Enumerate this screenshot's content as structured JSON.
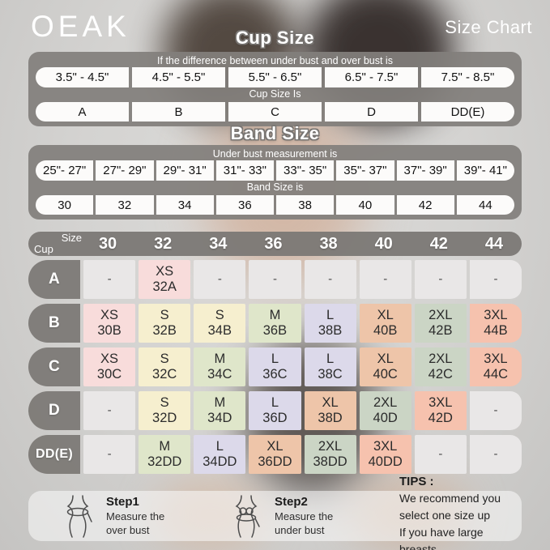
{
  "brand": "OEAK",
  "page_title": "Size Chart",
  "cup_section": {
    "title": "Cup Size",
    "header": "If the  difference between under bust and over bust is",
    "ranges": [
      "3.5\" -  4.5\"",
      "4.5\" -  5.5\"",
      "5.5\" -  6.5\"",
      "6.5\" -  7.5\"",
      "7.5\" -  8.5\""
    ],
    "subheader": "Cup Size Is",
    "cups": [
      "A",
      "B",
      "C",
      "D",
      "DD(E)"
    ]
  },
  "band_section": {
    "title": "Band Size",
    "header": "Under bust measurement is",
    "ranges": [
      "25\"- 27\"",
      "27\"- 29\"",
      "29\"- 31\"",
      "31\"- 33\"",
      "33\"- 35\"",
      "35\"- 37\"",
      "37\"- 39\"",
      "39\"- 41\""
    ],
    "subheader": "Band Size is",
    "bands": [
      "30",
      "32",
      "34",
      "36",
      "38",
      "40",
      "42",
      "44"
    ]
  },
  "matrix": {
    "corner_top": "Size",
    "corner_bottom": "Cup",
    "columns": [
      "30",
      "32",
      "34",
      "36",
      "38",
      "40",
      "42",
      "44"
    ],
    "rows": [
      {
        "cup": "A",
        "cells": [
          {
            "label": "-",
            "color": "gray"
          },
          {
            "label": "XS",
            "sub": "32A",
            "color": "pink"
          },
          {
            "label": "-",
            "color": "gray"
          },
          {
            "label": "-",
            "color": "gray"
          },
          {
            "label": "-",
            "color": "gray"
          },
          {
            "label": "-",
            "color": "gray"
          },
          {
            "label": "-",
            "color": "gray"
          },
          {
            "label": "-",
            "color": "gray"
          }
        ]
      },
      {
        "cup": "B",
        "cells": [
          {
            "label": "XS",
            "sub": "30B",
            "color": "pink"
          },
          {
            "label": "S",
            "sub": "32B",
            "color": "cream"
          },
          {
            "label": "S",
            "sub": "34B",
            "color": "cream"
          },
          {
            "label": "M",
            "sub": "36B",
            "color": "sage"
          },
          {
            "label": "L",
            "sub": "38B",
            "color": "lavender"
          },
          {
            "label": "XL",
            "sub": "40B",
            "color": "peach"
          },
          {
            "label": "2XL",
            "sub": "42B",
            "color": "sage2"
          },
          {
            "label": "3XL",
            "sub": "44B",
            "color": "salmon"
          }
        ]
      },
      {
        "cup": "C",
        "cells": [
          {
            "label": "XS",
            "sub": "30C",
            "color": "pink"
          },
          {
            "label": "S",
            "sub": "32C",
            "color": "cream"
          },
          {
            "label": "M",
            "sub": "34C",
            "color": "sage"
          },
          {
            "label": "L",
            "sub": "36C",
            "color": "lavender"
          },
          {
            "label": "L",
            "sub": "38C",
            "color": "lavender"
          },
          {
            "label": "XL",
            "sub": "40C",
            "color": "peach"
          },
          {
            "label": "2XL",
            "sub": "42C",
            "color": "sage2"
          },
          {
            "label": "3XL",
            "sub": "44C",
            "color": "salmon"
          }
        ]
      },
      {
        "cup": "D",
        "cells": [
          {
            "label": "-",
            "color": "gray"
          },
          {
            "label": "S",
            "sub": "32D",
            "color": "cream"
          },
          {
            "label": "M",
            "sub": "34D",
            "color": "sage"
          },
          {
            "label": "L",
            "sub": "36D",
            "color": "lavender"
          },
          {
            "label": "XL",
            "sub": "38D",
            "color": "peach"
          },
          {
            "label": "2XL",
            "sub": "40D",
            "color": "sage2"
          },
          {
            "label": "3XL",
            "sub": "42D",
            "color": "salmon"
          },
          {
            "label": "-",
            "color": "gray"
          }
        ]
      },
      {
        "cup": "DD(E)",
        "cells": [
          {
            "label": "-",
            "color": "gray"
          },
          {
            "label": "M",
            "sub": "32DD",
            "color": "sage"
          },
          {
            "label": "L",
            "sub": "34DD",
            "color": "lavender"
          },
          {
            "label": "XL",
            "sub": "36DD",
            "color": "peach"
          },
          {
            "label": "2XL",
            "sub": "38DD",
            "color": "sage2"
          },
          {
            "label": "3XL",
            "sub": "40DD",
            "color": "salmon"
          },
          {
            "label": "-",
            "color": "gray"
          },
          {
            "label": "-",
            "color": "gray"
          }
        ]
      }
    ]
  },
  "footer": {
    "step1_title": "Step1",
    "step1_line1": "Measure the",
    "step1_line2": "over bust",
    "step1_icon": "measure-over-bust-icon",
    "step2_title": "Step2",
    "step2_line1": "Measure the",
    "step2_line2": "under bust",
    "step2_icon": "measure-under-bust-icon",
    "tips_title": "TIPS :",
    "tips_line1": "We recommend you select one size up",
    "tips_line2": "If you have large breasts."
  },
  "colors": {
    "pink": "#f8dcdb",
    "cream": "#f6efcf",
    "sage": "#dfe6ca",
    "sage2": "#cbd5c5",
    "lavender": "#dcd9ea",
    "peach": "#eec5a9",
    "salmon": "#f6c2ae",
    "gray": "#e9e7e7"
  }
}
